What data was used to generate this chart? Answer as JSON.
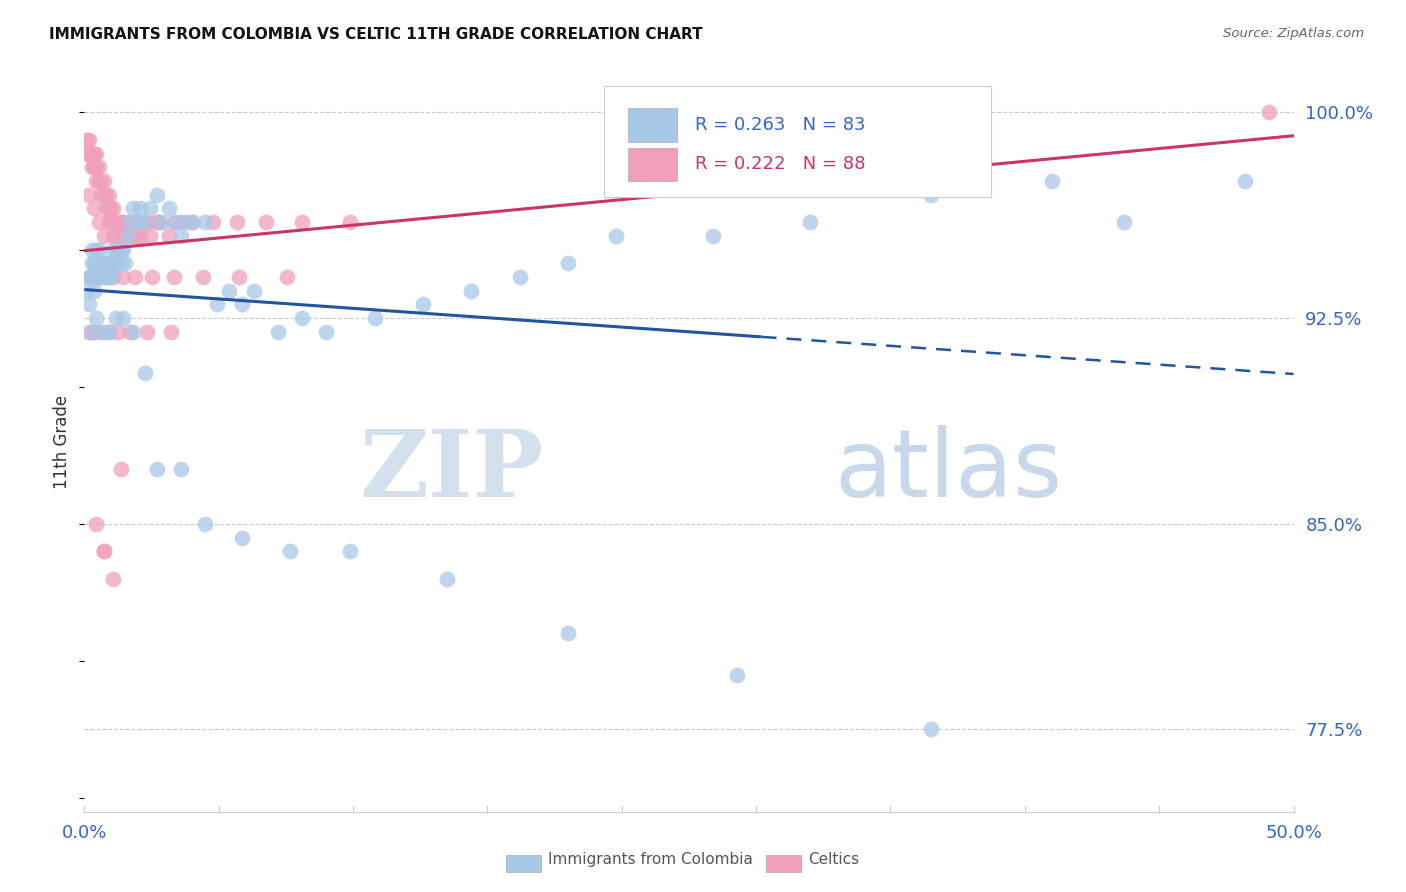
{
  "title": "IMMIGRANTS FROM COLOMBIA VS CELTIC 11TH GRADE CORRELATION CHART",
  "source": "Source: ZipAtlas.com",
  "ylabel": "11th Grade",
  "ylim": [
    0.745,
    1.015
  ],
  "xlim": [
    0.0,
    0.5
  ],
  "yticks": [
    0.775,
    0.85,
    0.925,
    1.0
  ],
  "ytick_labels": [
    "77.5%",
    "85.0%",
    "92.5%",
    "100.0%"
  ],
  "xtick_labels": [
    "0.0%",
    "50.0%"
  ],
  "blue_R": 0.263,
  "blue_N": 83,
  "pink_R": 0.222,
  "pink_N": 88,
  "blue_color": "#a8c8e8",
  "pink_color": "#f0a0bc",
  "blue_line_color": "#2255a0",
  "pink_line_color": "#cc3366",
  "blue_label": "Immigrants from Colombia",
  "pink_label": "Celtics",
  "watermark_zip": "ZIP",
  "watermark_atlas": "atlas",
  "accent_color": "#3366cc",
  "legend_border_color": "#cccccc",
  "blue_scatter_x": [
    0.001,
    0.002,
    0.002,
    0.003,
    0.003,
    0.003,
    0.004,
    0.004,
    0.004,
    0.005,
    0.005,
    0.006,
    0.006,
    0.007,
    0.007,
    0.008,
    0.008,
    0.009,
    0.009,
    0.01,
    0.01,
    0.011,
    0.011,
    0.012,
    0.012,
    0.013,
    0.014,
    0.015,
    0.015,
    0.016,
    0.017,
    0.018,
    0.019,
    0.02,
    0.022,
    0.023,
    0.025,
    0.027,
    0.03,
    0.032,
    0.035,
    0.038,
    0.04,
    0.042,
    0.045,
    0.05,
    0.055,
    0.06,
    0.065,
    0.07,
    0.08,
    0.09,
    0.1,
    0.12,
    0.14,
    0.16,
    0.18,
    0.2,
    0.22,
    0.26,
    0.3,
    0.35,
    0.4,
    0.003,
    0.005,
    0.008,
    0.01,
    0.013,
    0.016,
    0.02,
    0.025,
    0.03,
    0.04,
    0.05,
    0.065,
    0.085,
    0.11,
    0.15,
    0.2,
    0.27,
    0.35,
    0.43,
    0.48
  ],
  "blue_scatter_y": [
    0.935,
    0.93,
    0.94,
    0.945,
    0.94,
    0.95,
    0.945,
    0.94,
    0.935,
    0.95,
    0.945,
    0.94,
    0.95,
    0.945,
    0.94,
    0.945,
    0.94,
    0.945,
    0.94,
    0.945,
    0.94,
    0.945,
    0.94,
    0.95,
    0.945,
    0.95,
    0.945,
    0.95,
    0.945,
    0.95,
    0.945,
    0.955,
    0.96,
    0.965,
    0.96,
    0.965,
    0.96,
    0.965,
    0.97,
    0.96,
    0.965,
    0.96,
    0.955,
    0.96,
    0.96,
    0.96,
    0.93,
    0.935,
    0.93,
    0.935,
    0.92,
    0.925,
    0.92,
    0.925,
    0.93,
    0.935,
    0.94,
    0.945,
    0.955,
    0.955,
    0.96,
    0.97,
    0.975,
    0.92,
    0.925,
    0.92,
    0.92,
    0.925,
    0.925,
    0.92,
    0.905,
    0.87,
    0.87,
    0.85,
    0.845,
    0.84,
    0.84,
    0.83,
    0.81,
    0.795,
    0.775,
    0.96,
    0.975
  ],
  "pink_scatter_x": [
    0.001,
    0.001,
    0.002,
    0.002,
    0.003,
    0.003,
    0.003,
    0.004,
    0.004,
    0.005,
    0.005,
    0.005,
    0.006,
    0.006,
    0.007,
    0.007,
    0.008,
    0.008,
    0.009,
    0.009,
    0.01,
    0.01,
    0.011,
    0.011,
    0.012,
    0.012,
    0.013,
    0.013,
    0.014,
    0.015,
    0.016,
    0.017,
    0.018,
    0.019,
    0.02,
    0.021,
    0.022,
    0.023,
    0.025,
    0.027,
    0.03,
    0.035,
    0.04,
    0.002,
    0.004,
    0.006,
    0.008,
    0.01,
    0.012,
    0.014,
    0.016,
    0.019,
    0.022,
    0.026,
    0.031,
    0.037,
    0.044,
    0.053,
    0.063,
    0.075,
    0.09,
    0.11,
    0.002,
    0.004,
    0.006,
    0.009,
    0.012,
    0.016,
    0.021,
    0.028,
    0.037,
    0.049,
    0.064,
    0.084,
    0.002,
    0.004,
    0.007,
    0.01,
    0.014,
    0.019,
    0.026,
    0.036,
    0.005,
    0.008,
    0.012,
    0.49,
    0.008,
    0.015
  ],
  "pink_scatter_y": [
    0.99,
    0.985,
    0.99,
    0.985,
    0.985,
    0.98,
    0.985,
    0.985,
    0.98,
    0.985,
    0.98,
    0.975,
    0.98,
    0.975,
    0.975,
    0.97,
    0.975,
    0.97,
    0.97,
    0.965,
    0.97,
    0.965,
    0.965,
    0.96,
    0.965,
    0.96,
    0.96,
    0.955,
    0.96,
    0.96,
    0.96,
    0.955,
    0.96,
    0.955,
    0.96,
    0.955,
    0.96,
    0.955,
    0.96,
    0.955,
    0.96,
    0.955,
    0.96,
    0.97,
    0.965,
    0.96,
    0.955,
    0.96,
    0.955,
    0.95,
    0.955,
    0.955,
    0.955,
    0.96,
    0.96,
    0.96,
    0.96,
    0.96,
    0.96,
    0.96,
    0.96,
    0.96,
    0.94,
    0.94,
    0.94,
    0.94,
    0.94,
    0.94,
    0.94,
    0.94,
    0.94,
    0.94,
    0.94,
    0.94,
    0.92,
    0.92,
    0.92,
    0.92,
    0.92,
    0.92,
    0.92,
    0.92,
    0.85,
    0.84,
    0.83,
    1.0,
    0.84,
    0.87
  ]
}
